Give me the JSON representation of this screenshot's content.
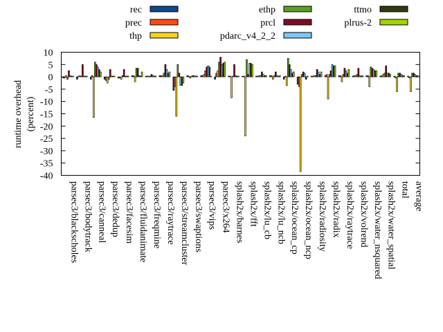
{
  "chart_data": {
    "type": "bar",
    "ylabel": "runtime overhead\n(percent)",
    "ylim": [
      -40,
      10
    ],
    "yticks": [
      10,
      5,
      0,
      -5,
      -10,
      -15,
      -20,
      -25,
      -30,
      -35,
      -40
    ],
    "grid": false,
    "legend_position": "top",
    "categories": [
      "parsec3/blackscholes",
      "parsec3/bodytrack",
      "parsec3/canneal",
      "parsec3/dedup",
      "parsec3/facesim",
      "parsec3/fluidanimate",
      "parsec3/freqmine",
      "parsec3/raytrace",
      "parsec3/streamcluster",
      "parsec3/swaptions",
      "parsec3/vips",
      "parsec3/x264",
      "splash2x/barnes",
      "splash2x/fft",
      "splash2x/lu_cb",
      "splash2x/lu_ncb",
      "splash2x/ocean_cp",
      "splash2x/ocean_ncp",
      "splash2x/radiosity",
      "splash2x/radix",
      "splash2x/raytrace",
      "splash2x/volrend",
      "splash2x/water_nsquared",
      "splash2x/water_spatial",
      "total",
      "average"
    ],
    "series": [
      {
        "name": "rec",
        "color": "#0b4a8c",
        "values": [
          -0.5,
          -1.0,
          -1.0,
          -1.0,
          -0.5,
          0.5,
          0.3,
          0.5,
          -5.5,
          0.5,
          0.5,
          -1.0,
          0.3,
          0.3,
          0.3,
          0.5,
          -1.0,
          -3.0,
          0.3,
          0.5,
          0.5,
          0.3,
          0.5,
          0.3,
          0.3,
          0.3
        ]
      },
      {
        "name": "prec",
        "color": "#ff4a14",
        "values": [
          -0.5,
          0.3,
          0.5,
          -1.5,
          -0.5,
          0.5,
          0.3,
          0.5,
          -4.0,
          0.3,
          0.5,
          1.5,
          0.3,
          0.3,
          0.3,
          0.5,
          0.3,
          -4.0,
          0.3,
          1.0,
          0.5,
          0.5,
          0.5,
          0.5,
          -0.5,
          -0.5
        ]
      },
      {
        "name": "thp",
        "color": "#ffd21a",
        "values": [
          0.5,
          0.5,
          -16.5,
          -2.5,
          -1.0,
          -2.0,
          0.3,
          0.5,
          -16.0,
          -0.5,
          1.0,
          2.5,
          -8.5,
          -24.0,
          0.5,
          -1.0,
          -3.5,
          -38.5,
          0.5,
          -9.0,
          -2.0,
          0.5,
          -4.0,
          1.0,
          -6.0,
          -6.0
        ]
      },
      {
        "name": "ethp",
        "color": "#5aa022",
        "values": [
          -1.0,
          0.3,
          6.0,
          -1.0,
          0.5,
          3.5,
          0.3,
          1.5,
          5.0,
          0.3,
          2.5,
          6.0,
          0.3,
          7.0,
          0.5,
          0.5,
          7.5,
          1.0,
          0.5,
          1.0,
          1.0,
          1.0,
          4.0,
          1.5,
          1.5,
          1.5
        ]
      },
      {
        "name": "prcl",
        "color": "#7a0f24",
        "values": [
          2.5,
          5.0,
          5.0,
          3.0,
          3.0,
          3.5,
          1.0,
          5.0,
          1.5,
          0.5,
          4.0,
          8.0,
          5.0,
          1.0,
          2.0,
          2.0,
          5.0,
          2.0,
          3.0,
          2.5,
          3.5,
          3.5,
          3.5,
          4.5,
          1.5,
          1.5
        ]
      },
      {
        "name": "pdarc_v4_2_2",
        "color": "#78c8ff",
        "values": [
          0.5,
          0.3,
          4.0,
          0.3,
          0.3,
          0.5,
          0.5,
          3.0,
          -3.5,
          0.5,
          4.5,
          5.0,
          0.5,
          5.5,
          1.0,
          0.5,
          3.0,
          1.5,
          2.0,
          5.0,
          2.5,
          0.5,
          3.0,
          1.5,
          1.0,
          1.0
        ]
      },
      {
        "name": "ttmo",
        "color": "#2f3b0d",
        "values": [
          0.3,
          0.3,
          3.0,
          0.3,
          0.3,
          0.3,
          0.3,
          1.5,
          -3.5,
          0.3,
          4.0,
          5.5,
          0.3,
          5.5,
          0.5,
          0.3,
          1.5,
          -1.0,
          1.0,
          4.5,
          1.5,
          0.3,
          2.5,
          1.5,
          0.5,
          0.5
        ]
      },
      {
        "name": "plrus-2",
        "color": "#a4d400",
        "values": [
          0.3,
          0.3,
          2.0,
          0.3,
          0.3,
          2.0,
          0.3,
          2.0,
          -2.5,
          0.3,
          0.3,
          6.0,
          0.3,
          5.0,
          0.5,
          0.5,
          2.0,
          0.3,
          2.0,
          4.5,
          3.0,
          0.5,
          2.5,
          1.0,
          0.5,
          0.5
        ]
      }
    ]
  }
}
